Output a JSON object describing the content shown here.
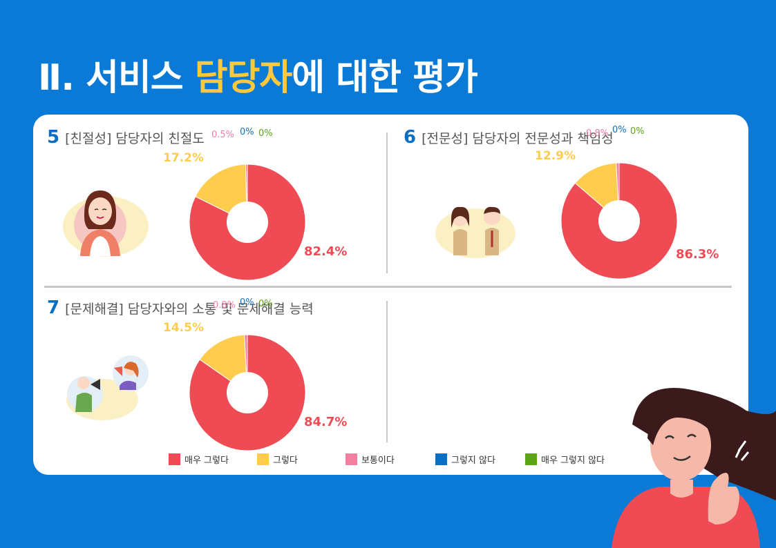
{
  "header": {
    "title_prefix": "Ⅱ. 서비스 ",
    "title_highlight": "담당자",
    "title_suffix": "에 대한  평가"
  },
  "legend": [
    {
      "label": "매우 그렇다",
      "color": "#ee4b54"
    },
    {
      "label": "그렇다",
      "color": "#ffcc4d"
    },
    {
      "label": "보통이다",
      "color": "#f17fa0"
    },
    {
      "label": "그렇지 않다",
      "color": "#0a6fc2"
    },
    {
      "label": "매우 그렇지 않다",
      "color": "#5ba514"
    }
  ],
  "questions": [
    {
      "num": "5",
      "title": "[친절성] 담당자의 친절도"
    },
    {
      "num": "6",
      "title": "[전문성] 담당자의 전문성과 책임성"
    },
    {
      "num": "7",
      "title": "[문제해결] 담당자와의 소통 및 문제해결 능력"
    }
  ],
  "chart_data": [
    {
      "type": "pie",
      "title": "[친절성] 담당자의 친절도",
      "categories": [
        "매우 그렇다",
        "그렇다",
        "보통이다",
        "그렇지 않다",
        "매우 그렇지 않다"
      ],
      "values": [
        82.4,
        17.2,
        0.5,
        0,
        0
      ],
      "labels": [
        "82.4%",
        "17.2%",
        "0.5%",
        "0%",
        "0%"
      ]
    },
    {
      "type": "pie",
      "title": "[전문성] 담당자의 전문성과 책임성",
      "categories": [
        "매우 그렇다",
        "그렇다",
        "보통이다",
        "그렇지 않다",
        "매우 그렇지 않다"
      ],
      "values": [
        86.3,
        12.9,
        0.8,
        0,
        0
      ],
      "labels": [
        "86.3%",
        "12.9%",
        "0.8%",
        "0%",
        "0%"
      ]
    },
    {
      "type": "pie",
      "title": "[문제해결] 담당자와의 소통 및 문제해결 능력",
      "categories": [
        "매우 그렇다",
        "그렇다",
        "보통이다",
        "그렇지 않다",
        "매우 그렇지 않다"
      ],
      "values": [
        84.7,
        14.5,
        0.8,
        0,
        0
      ],
      "labels": [
        "84.7%",
        "14.5%",
        "0.8%",
        "0%",
        "0%"
      ]
    }
  ]
}
